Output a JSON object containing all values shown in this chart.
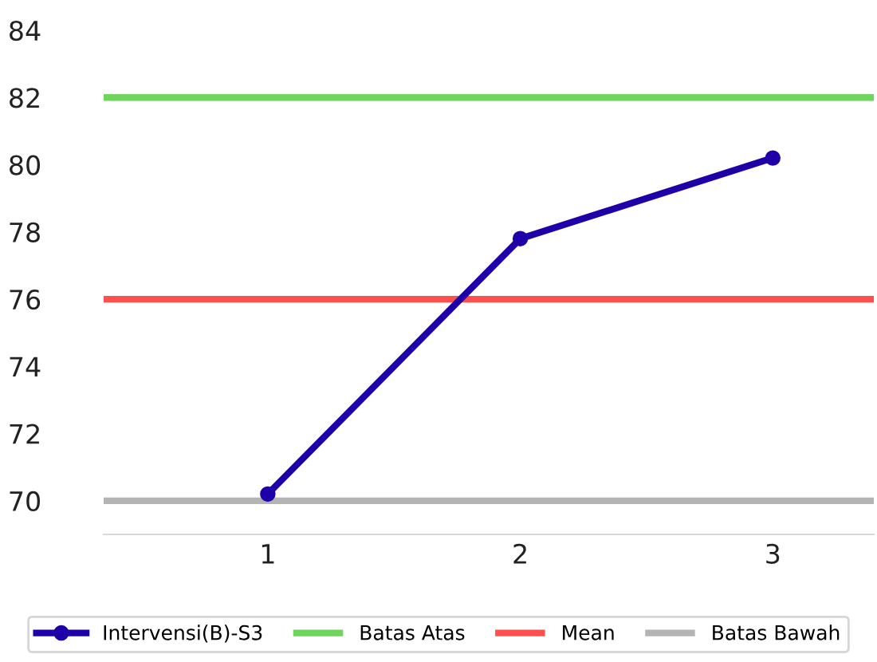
{
  "chart_data": {
    "type": "line",
    "categories": [
      "1",
      "2",
      "3"
    ],
    "series": [
      {
        "name": "Intervensi(B)-S3",
        "color": "#1f00a8",
        "values": [
          70.2,
          77.8,
          80.2
        ]
      }
    ],
    "ylim": [
      69,
      84
    ],
    "yticks": [
      70,
      72,
      74,
      76,
      78,
      80,
      82,
      84
    ],
    "ref_lines": [
      {
        "axis": "y",
        "value": 82,
        "label": "Batas Atas",
        "color": "#6fd55c"
      },
      {
        "axis": "y",
        "value": 76,
        "label": "Mean",
        "color": "#ff5050"
      },
      {
        "axis": "y",
        "value": 70,
        "label": "Batas Bawah",
        "color": "#b4b4b4"
      }
    ],
    "marker": "circle",
    "grid": false,
    "legend": "bottom"
  }
}
